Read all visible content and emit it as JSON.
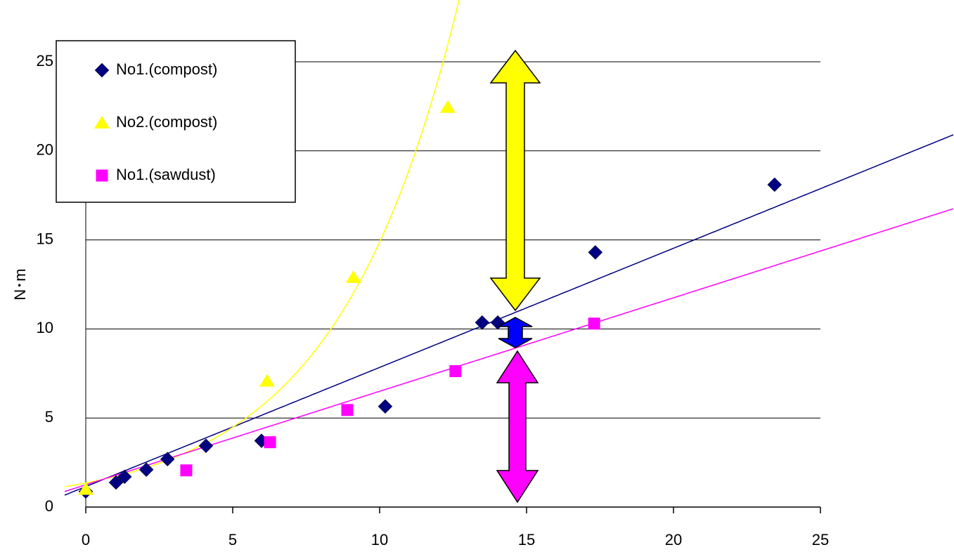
{
  "chart_data": {
    "type": "scatter",
    "y_label": "N･m",
    "xlim": [
      0,
      25
    ],
    "ylim": [
      0,
      25
    ],
    "xticks": [
      0,
      5,
      10,
      15,
      20,
      25
    ],
    "yticks": [
      0,
      5,
      10,
      15,
      20,
      25
    ],
    "grid": true,
    "legend": "top-left",
    "series": [
      {
        "name": "No1.(compost)",
        "color": "#000080",
        "marker": "diamond",
        "x": [
          0,
          1.03,
          1.32,
          2.06,
          2.78,
          4.09,
          5.98,
          10.19,
          13.49,
          14.02,
          17.34,
          23.44
        ],
        "values": [
          0.87,
          1.38,
          1.7,
          2.1,
          2.69,
          3.44,
          3.72,
          5.65,
          10.36,
          10.36,
          14.3,
          18.1
        ],
        "trend": {
          "type": "linear",
          "slope": 0.669,
          "intercept": 1.15
        }
      },
      {
        "name": "No2.(compost)",
        "color": "#ffff00",
        "marker": "triangle",
        "x": [
          0,
          6.17,
          9.11,
          12.32
        ],
        "values": [
          1.0,
          7.08,
          12.9,
          22.45
        ],
        "trend": {
          "type": "exponential",
          "a": 1.35,
          "b": 0.24
        }
      },
      {
        "name": "No1.(sawdust)",
        "color": "#ff00ff",
        "marker": "square",
        "x": [
          3.42,
          6.27,
          8.9,
          12.58,
          17.3
        ],
        "values": [
          2.06,
          3.64,
          5.45,
          7.63,
          10.3
        ],
        "trend": {
          "type": "linear",
          "slope": 0.525,
          "intercept": 1.25
        }
      }
    ]
  }
}
